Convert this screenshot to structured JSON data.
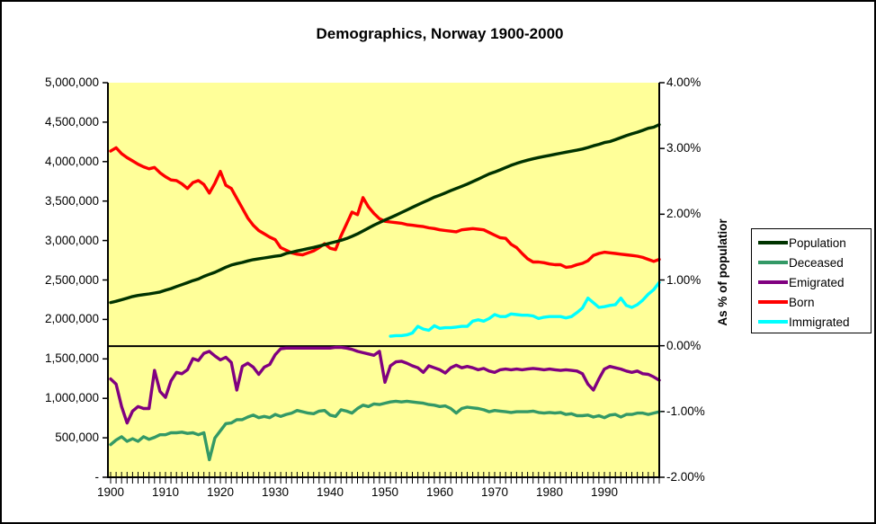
{
  "chart_data": {
    "type": "line",
    "title": "Demographics, Norway 1900-2000",
    "plot_bg": "#FFFF99",
    "axis_color": "#000000",
    "legend_position": "right",
    "grid": false,
    "x_axis": {
      "start_year": 1900,
      "end_year": 2000,
      "minor_tick_every": 1,
      "tick_labels": [
        "1900",
        "1910",
        "1920",
        "1930",
        "1940",
        "1950",
        "1960",
        "1970",
        "1980",
        "1990"
      ]
    },
    "left_axis": {
      "min": 0,
      "max": 5000000,
      "tick_step": 500000,
      "tick_labels": [
        "5,000,000",
        "4,500,000",
        "4,000,000",
        "3,500,000",
        "3,000,000",
        "2,500,000",
        "2,000,000",
        "1,500,000",
        "1,000,000",
        "500,000",
        "-"
      ]
    },
    "right_axis": {
      "title": "As % of populatior",
      "min": -2,
      "max": 4,
      "tick_step": 1,
      "tick_labels": [
        "4.00%",
        "3.00%",
        "2.00%",
        "1.00%",
        "0.00%",
        "-1.00%",
        "-2.00%"
      ]
    },
    "series": [
      {
        "name": "Population",
        "color": "#003300",
        "axis": "left",
        "values": [
          2220000,
          2236000,
          2255000,
          2275000,
          2296000,
          2309000,
          2320000,
          2329000,
          2340000,
          2353000,
          2376000,
          2396000,
          2423000,
          2447000,
          2472000,
          2498000,
          2518000,
          2551000,
          2578000,
          2603000,
          2635000,
          2668000,
          2695000,
          2713000,
          2728000,
          2747000,
          2763000,
          2775000,
          2785000,
          2795000,
          2807000,
          2816000,
          2842000,
          2858000,
          2874000,
          2889000,
          2904000,
          2919000,
          2936000,
          2954000,
          2973000,
          2990000,
          3009000,
          3032000,
          3060000,
          3091000,
          3127000,
          3165000,
          3201000,
          3234000,
          3266000,
          3296000,
          3328000,
          3361000,
          3394000,
          3427000,
          3460000,
          3492000,
          3523000,
          3556000,
          3581000,
          3610000,
          3639000,
          3667000,
          3694000,
          3723000,
          3753000,
          3785000,
          3819000,
          3851000,
          3876000,
          3903000,
          3933000,
          3961000,
          3985000,
          4007000,
          4026000,
          4043000,
          4059000,
          4073000,
          4086000,
          4100000,
          4114000,
          4128000,
          4140000,
          4153000,
          4167000,
          4187000,
          4209000,
          4227000,
          4250000,
          4262000,
          4286000,
          4312000,
          4337000,
          4360000,
          4381000,
          4405000,
          4431000,
          4445000,
          4478000
        ]
      },
      {
        "name": "Deceased",
        "color": "#339966",
        "axis": "right",
        "values": [
          -1.5,
          -1.43,
          -1.38,
          -1.45,
          -1.41,
          -1.45,
          -1.38,
          -1.42,
          -1.39,
          -1.35,
          -1.35,
          -1.32,
          -1.32,
          -1.31,
          -1.33,
          -1.32,
          -1.35,
          -1.32,
          -1.73,
          -1.4,
          -1.29,
          -1.18,
          -1.17,
          -1.12,
          -1.12,
          -1.08,
          -1.05,
          -1.09,
          -1.07,
          -1.09,
          -1.04,
          -1.07,
          -1.04,
          -1.02,
          -0.98,
          -1.0,
          -1.02,
          -1.03,
          -0.99,
          -0.98,
          -1.05,
          -1.07,
          -0.97,
          -0.99,
          -1.02,
          -0.95,
          -0.9,
          -0.92,
          -0.88,
          -0.89,
          -0.87,
          -0.85,
          -0.84,
          -0.85,
          -0.84,
          -0.85,
          -0.86,
          -0.87,
          -0.89,
          -0.9,
          -0.92,
          -0.91,
          -0.95,
          -1.02,
          -0.95,
          -0.93,
          -0.94,
          -0.95,
          -0.97,
          -1.0,
          -0.98,
          -0.99,
          -1.0,
          -1.01,
          -1.0,
          -1.0,
          -1.0,
          -0.99,
          -1.01,
          -1.02,
          -1.01,
          -1.02,
          -1.01,
          -1.04,
          -1.03,
          -1.06,
          -1.06,
          -1.05,
          -1.08,
          -1.06,
          -1.09,
          -1.05,
          -1.04,
          -1.08,
          -1.04,
          -1.04,
          -1.02,
          -1.02,
          -1.04,
          -1.02,
          -1.0
        ]
      },
      {
        "name": "Emigrated",
        "color": "#800080",
        "axis": "right",
        "values": [
          -0.5,
          -0.58,
          -0.92,
          -1.17,
          -0.99,
          -0.92,
          -0.95,
          -0.95,
          -0.37,
          -0.69,
          -0.78,
          -0.53,
          -0.4,
          -0.42,
          -0.36,
          -0.19,
          -0.22,
          -0.11,
          -0.08,
          -0.15,
          -0.21,
          -0.17,
          -0.25,
          -0.67,
          -0.31,
          -0.26,
          -0.32,
          -0.43,
          -0.32,
          -0.28,
          -0.13,
          -0.04,
          -0.03,
          -0.03,
          -0.03,
          -0.03,
          -0.03,
          -0.03,
          -0.03,
          -0.03,
          -0.03,
          -0.02,
          -0.02,
          -0.03,
          -0.05,
          -0.08,
          -0.1,
          -0.12,
          -0.14,
          -0.08,
          -0.55,
          -0.3,
          -0.24,
          -0.23,
          -0.26,
          -0.3,
          -0.33,
          -0.4,
          -0.3,
          -0.33,
          -0.36,
          -0.41,
          -0.33,
          -0.29,
          -0.33,
          -0.31,
          -0.33,
          -0.36,
          -0.34,
          -0.38,
          -0.4,
          -0.36,
          -0.35,
          -0.36,
          -0.35,
          -0.36,
          -0.35,
          -0.34,
          -0.35,
          -0.36,
          -0.35,
          -0.36,
          -0.37,
          -0.36,
          -0.37,
          -0.38,
          -0.42,
          -0.58,
          -0.67,
          -0.5,
          -0.35,
          -0.31,
          -0.33,
          -0.35,
          -0.38,
          -0.4,
          -0.38,
          -0.42,
          -0.43,
          -0.47,
          -0.52
        ]
      },
      {
        "name": "Born",
        "color": "#FF0000",
        "axis": "right",
        "values": [
          2.97,
          3.02,
          2.93,
          2.87,
          2.82,
          2.77,
          2.73,
          2.7,
          2.72,
          2.64,
          2.58,
          2.53,
          2.52,
          2.47,
          2.4,
          2.49,
          2.52,
          2.46,
          2.33,
          2.48,
          2.66,
          2.45,
          2.4,
          2.25,
          2.1,
          1.95,
          1.84,
          1.76,
          1.71,
          1.66,
          1.62,
          1.5,
          1.46,
          1.42,
          1.4,
          1.39,
          1.42,
          1.45,
          1.5,
          1.56,
          1.49,
          1.47,
          1.68,
          1.86,
          2.04,
          2.0,
          2.26,
          2.12,
          2.02,
          1.94,
          1.9,
          1.89,
          1.88,
          1.87,
          1.85,
          1.84,
          1.83,
          1.82,
          1.8,
          1.79,
          1.77,
          1.76,
          1.75,
          1.74,
          1.77,
          1.78,
          1.79,
          1.78,
          1.77,
          1.73,
          1.69,
          1.65,
          1.64,
          1.55,
          1.5,
          1.41,
          1.33,
          1.28,
          1.28,
          1.27,
          1.25,
          1.24,
          1.24,
          1.2,
          1.21,
          1.24,
          1.26,
          1.3,
          1.38,
          1.41,
          1.43,
          1.42,
          1.41,
          1.4,
          1.39,
          1.38,
          1.37,
          1.35,
          1.32,
          1.29,
          1.32
        ]
      },
      {
        "name": "Immigrated",
        "color": "#00FFFF",
        "axis": "right",
        "values": [
          null,
          null,
          null,
          null,
          null,
          null,
          null,
          null,
          null,
          null,
          null,
          null,
          null,
          null,
          null,
          null,
          null,
          null,
          null,
          null,
          null,
          null,
          null,
          null,
          null,
          null,
          null,
          null,
          null,
          null,
          null,
          null,
          null,
          null,
          null,
          null,
          null,
          null,
          null,
          null,
          null,
          null,
          null,
          null,
          null,
          null,
          null,
          null,
          null,
          null,
          null,
          0.15,
          0.16,
          0.16,
          0.17,
          0.2,
          0.3,
          0.26,
          0.24,
          0.31,
          0.27,
          0.28,
          0.28,
          0.29,
          0.3,
          0.3,
          0.38,
          0.4,
          0.38,
          0.42,
          0.48,
          0.45,
          0.45,
          0.49,
          0.48,
          0.47,
          0.47,
          0.46,
          0.42,
          0.44,
          0.45,
          0.45,
          0.45,
          0.43,
          0.45,
          0.51,
          0.58,
          0.73,
          0.66,
          0.59,
          0.6,
          0.62,
          0.63,
          0.73,
          0.62,
          0.59,
          0.63,
          0.7,
          0.79,
          0.86,
          0.97
        ]
      }
    ]
  }
}
